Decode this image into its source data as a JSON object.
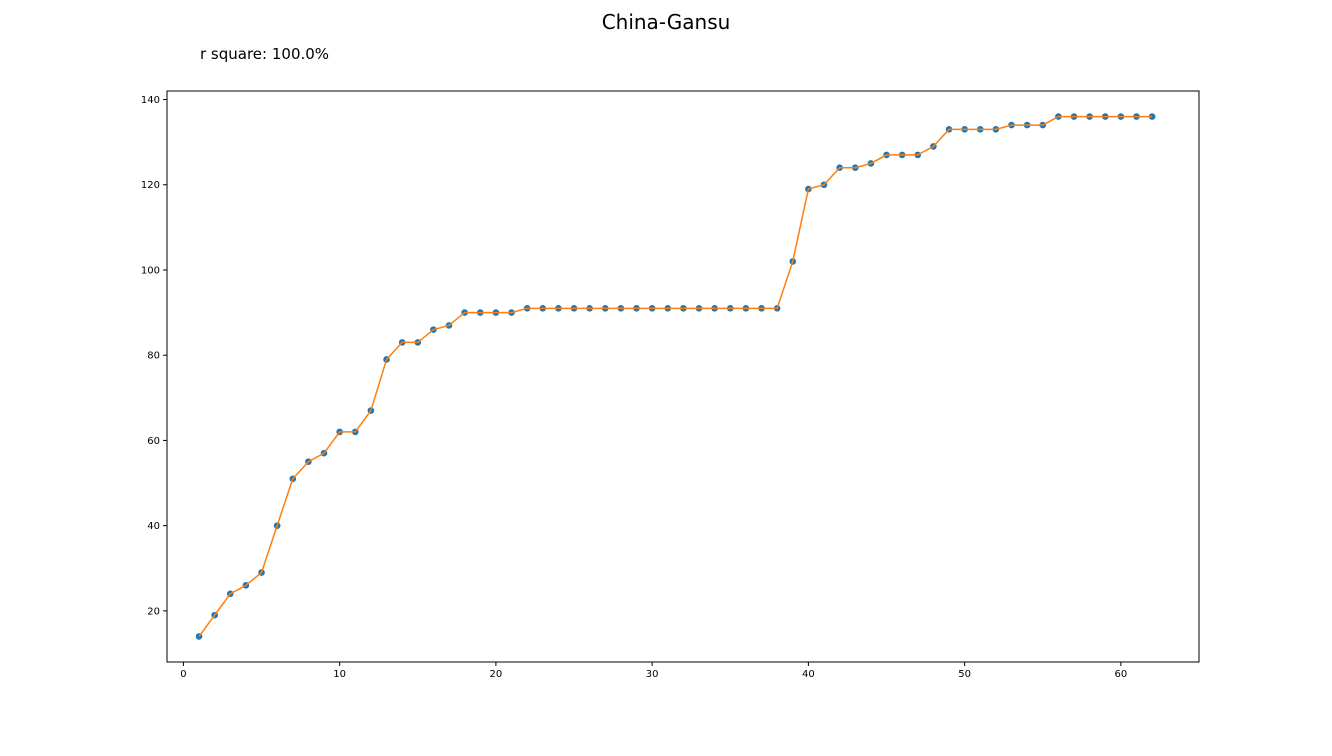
{
  "chart_data": {
    "type": "line",
    "title": "China-Gansu",
    "subtitle": "r square: 100.0%",
    "xlabel": "",
    "ylabel": "",
    "xlim": [
      -1.05,
      65
    ],
    "ylim": [
      8,
      142
    ],
    "x_ticks": [
      0,
      10,
      20,
      30,
      40,
      50,
      60
    ],
    "y_ticks": [
      20,
      40,
      60,
      80,
      100,
      120,
      140
    ],
    "grid": false,
    "legend": "none",
    "colors": {
      "points": "#1f77b4",
      "line": "#ff7f0e"
    },
    "x": [
      1,
      2,
      3,
      4,
      5,
      6,
      7,
      8,
      9,
      10,
      11,
      12,
      13,
      14,
      15,
      16,
      17,
      18,
      19,
      20,
      21,
      22,
      23,
      24,
      25,
      26,
      27,
      28,
      29,
      30,
      31,
      32,
      33,
      34,
      35,
      36,
      37,
      38,
      39,
      40,
      41,
      42,
      43,
      44,
      45,
      46,
      47,
      48,
      49,
      50,
      51,
      52,
      53,
      54,
      55,
      56,
      57,
      58,
      59,
      60,
      61,
      62
    ],
    "series": [
      {
        "values": [
          14,
          19,
          24,
          26,
          29,
          40,
          51,
          55,
          57,
          62,
          62,
          67,
          79,
          83,
          83,
          86,
          87,
          90,
          90,
          90,
          90,
          91,
          91,
          91,
          91,
          91,
          91,
          91,
          91,
          91,
          91,
          91,
          91,
          91,
          91,
          91,
          91,
          91,
          102,
          119,
          120,
          124,
          124,
          125,
          127,
          127,
          127,
          129,
          133,
          133,
          133,
          133,
          134,
          134,
          134,
          136,
          136,
          136,
          136,
          136,
          136,
          136
        ]
      }
    ]
  }
}
